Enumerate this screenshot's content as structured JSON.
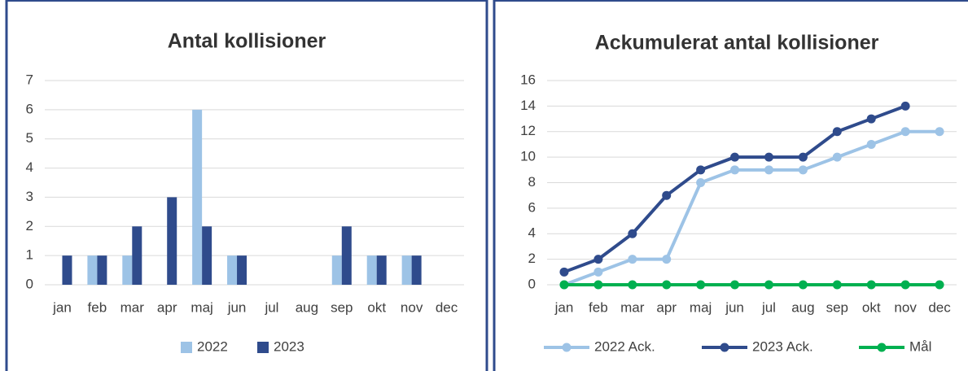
{
  "chart_data": [
    {
      "type": "bar",
      "title": "Antal kollisioner",
      "categories": [
        "jan",
        "feb",
        "mar",
        "apr",
        "maj",
        "jun",
        "jul",
        "aug",
        "sep",
        "okt",
        "nov",
        "dec"
      ],
      "series": [
        {
          "name": "2022",
          "color": "#9dc3e6",
          "values": [
            0,
            1,
            1,
            0,
            6,
            1,
            0,
            0,
            1,
            1,
            1,
            0
          ]
        },
        {
          "name": "2023",
          "color": "#2f4b8c",
          "values": [
            1,
            1,
            2,
            3,
            2,
            1,
            0,
            0,
            2,
            1,
            1,
            null
          ]
        }
      ],
      "ylim": [
        0,
        7
      ],
      "yticks": [
        0,
        1,
        2,
        3,
        4,
        5,
        6,
        7
      ],
      "grid": true,
      "legend": "bottom"
    },
    {
      "type": "line",
      "title": "Ackumulerat antal kollisioner",
      "categories": [
        "jan",
        "feb",
        "mar",
        "apr",
        "maj",
        "jun",
        "jul",
        "aug",
        "sep",
        "okt",
        "nov",
        "dec"
      ],
      "series": [
        {
          "name": "2022 Ack.",
          "color": "#9dc3e6",
          "values": [
            0,
            1,
            2,
            2,
            8,
            9,
            9,
            9,
            10,
            11,
            12,
            12
          ]
        },
        {
          "name": "2023 Ack.",
          "color": "#2f4b8c",
          "values": [
            1,
            2,
            4,
            7,
            9,
            10,
            10,
            10,
            12,
            13,
            14,
            null
          ]
        },
        {
          "name": "Mål",
          "color": "#00b050",
          "values": [
            0,
            0,
            0,
            0,
            0,
            0,
            0,
            0,
            0,
            0,
            0,
            0
          ]
        }
      ],
      "ylim": [
        0,
        16
      ],
      "yticks": [
        0,
        2,
        4,
        6,
        8,
        10,
        12,
        14,
        16
      ],
      "grid": true,
      "legend": "bottom"
    }
  ]
}
